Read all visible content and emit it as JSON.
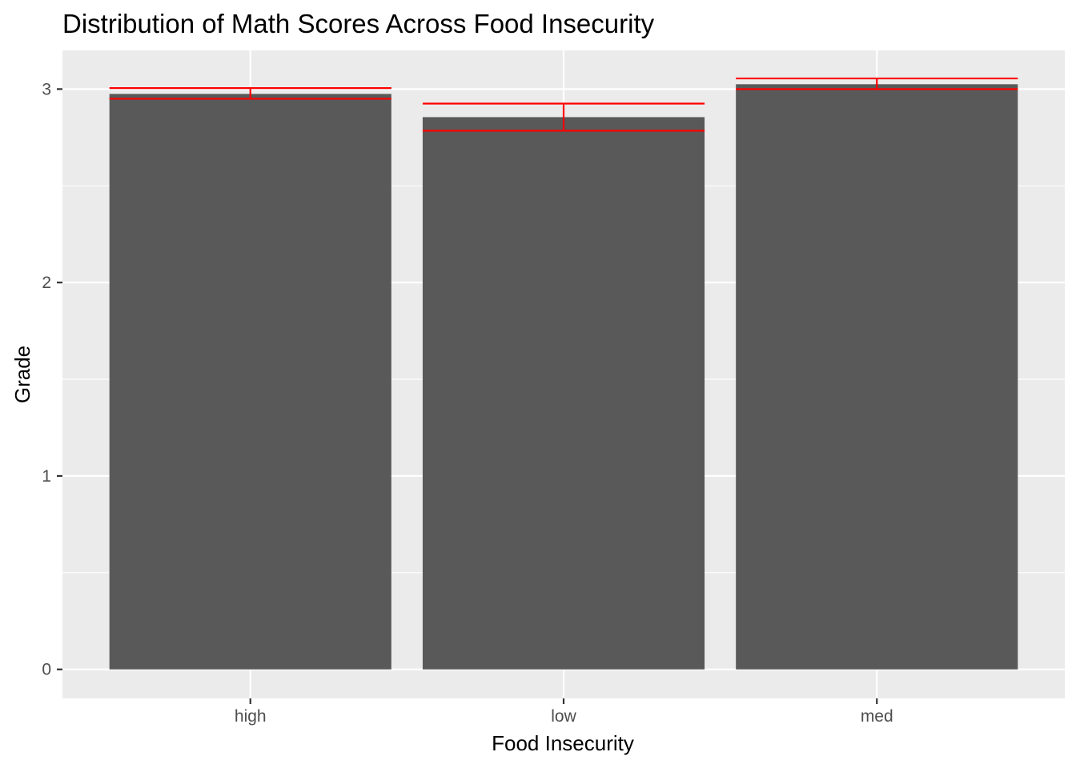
{
  "chart_data": {
    "type": "bar",
    "title": "Distribution of Math Scores Across Food Insecurity",
    "xlabel": "Food Insecurity",
    "ylabel": "Grade",
    "categories": [
      "high",
      "low",
      "med"
    ],
    "values": [
      2.975,
      2.855,
      3.025
    ],
    "error_bars": [
      {
        "low": 2.95,
        "high": 3.005
      },
      {
        "low": 2.785,
        "high": 2.925
      },
      {
        "low": 3.0,
        "high": 3.055
      }
    ],
    "ylim": [
      -0.15,
      3.2
    ],
    "yticks": [
      0,
      1,
      2,
      3
    ],
    "grid": true,
    "legend": "none",
    "colors": {
      "panel": "#ebebeb",
      "grid": "#ffffff",
      "bar": "#595959",
      "error_bar": "#ff0000",
      "tick": "#333333"
    }
  }
}
